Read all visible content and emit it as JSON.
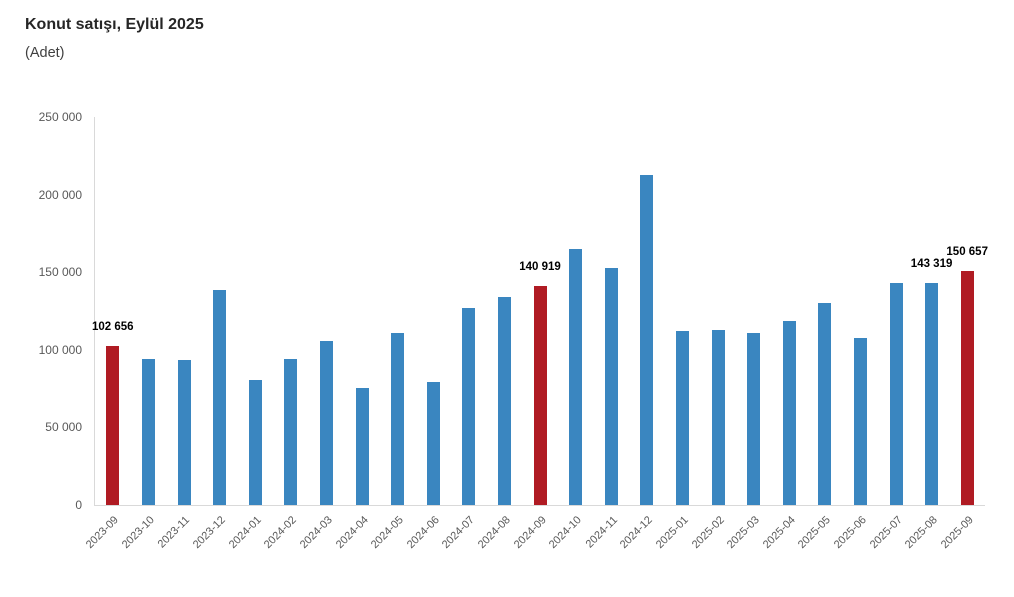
{
  "title": "Konut satışı, Eylül 2025",
  "subtitle": "(Adet)",
  "colors": {
    "bar_default": "#3a86c0",
    "bar_highlight": "#b01b23",
    "axis_line": "#d9d9d9",
    "tick_text": "#595959",
    "value_label_text": "#000000",
    "title_text": "#262626",
    "subtitle_text": "#404040"
  },
  "chart_data": {
    "type": "bar",
    "title": "Konut satışı, Eylül 2025",
    "subtitle": "(Adet)",
    "xlabel": "",
    "ylabel": "Adet",
    "ylim": [
      0,
      250000
    ],
    "grid": false,
    "legend": false,
    "categories": [
      "2023-09",
      "2023-10",
      "2023-11",
      "2023-12",
      "2024-01",
      "2024-02",
      "2024-03",
      "2024-04",
      "2024-05",
      "2024-06",
      "2024-07",
      "2024-08",
      "2024-09",
      "2024-10",
      "2024-11",
      "2024-12",
      "2025-01",
      "2025-02",
      "2025-03",
      "2025-04",
      "2025-05",
      "2025-06",
      "2025-07",
      "2025-08",
      "2025-09"
    ],
    "values": [
      102656,
      93761,
      93514,
      138577,
      80308,
      93902,
      105476,
      75569,
      110588,
      79313,
      127088,
      134155,
      140919,
      165138,
      153014,
      212637,
      112173,
      112818,
      110795,
      118359,
      130025,
      107723,
      142858,
      143319,
      150657
    ],
    "highlighted_categories": [
      "2023-09",
      "2024-09",
      "2025-09"
    ],
    "value_labels": {
      "2023-09": "102 656",
      "2024-09": "140 919",
      "2025-08": "143 319",
      "2025-09": "150 657"
    },
    "yticks": [
      {
        "value": 0,
        "label": "0"
      },
      {
        "value": 50000,
        "label": "50 000"
      },
      {
        "value": 100000,
        "label": "100 000"
      },
      {
        "value": 150000,
        "label": "150 000"
      },
      {
        "value": 200000,
        "label": "200 000"
      },
      {
        "value": 250000,
        "label": "250 000"
      }
    ]
  }
}
